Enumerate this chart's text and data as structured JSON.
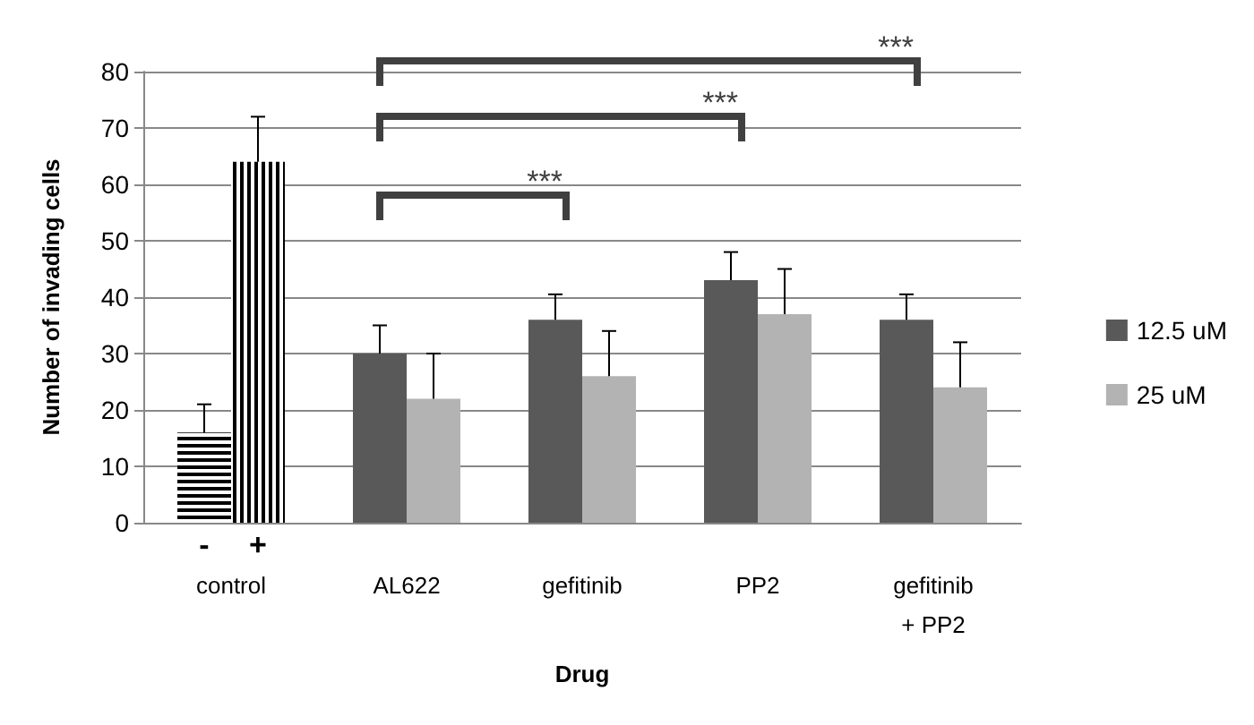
{
  "chart_data": {
    "type": "bar",
    "xlabel": "Drug",
    "ylabel": "Number of invading cells",
    "categories": [
      "control",
      "AL622",
      "gefitinib",
      "PP2",
      "gefitinib\n+ PP2"
    ],
    "series": [
      {
        "name": "12.5 uM",
        "color": "#595959",
        "values": [
          null,
          30,
          36,
          43,
          36
        ],
        "errors": [
          null,
          [
            30,
            35
          ],
          [
            36,
            40.5
          ],
          [
            43,
            48
          ],
          [
            36,
            40.5
          ]
        ]
      },
      {
        "name": "25 uM",
        "color": "#b3b3b3",
        "values": [
          null,
          22,
          26,
          37,
          24
        ],
        "errors": [
          null,
          [
            22,
            30
          ],
          [
            26,
            34
          ],
          [
            37,
            45
          ],
          [
            24,
            32
          ]
        ]
      },
      {
        "name": "-",
        "color": "#000000",
        "values": [
          16,
          null,
          null,
          null,
          null
        ],
        "errors": [
          [
            16,
            21
          ],
          null,
          null,
          null,
          null
        ]
      },
      {
        "name": "+",
        "color": "#000000",
        "values": [
          64,
          null,
          null,
          null,
          null
        ],
        "errors": [
          [
            64,
            72
          ],
          null,
          null,
          null,
          null
        ]
      }
    ],
    "ylim": [
      0,
      80
    ],
    "yticks": [
      0,
      10,
      20,
      30,
      40,
      50,
      60,
      70,
      80
    ],
    "grid": "y",
    "legend": "right",
    "annotations": [
      "***",
      "***",
      "***"
    ]
  }
}
